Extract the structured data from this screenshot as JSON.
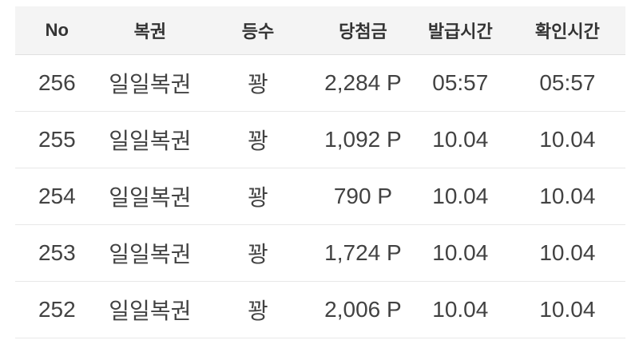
{
  "table": {
    "name": "lottery-history",
    "columns": [
      {
        "key": "no",
        "label": "No"
      },
      {
        "key": "lottery",
        "label": "복권"
      },
      {
        "key": "rank",
        "label": "등수"
      },
      {
        "key": "prize",
        "label": "당첨금"
      },
      {
        "key": "issued-time",
        "label": "발급시간"
      },
      {
        "key": "checked-time",
        "label": "확인시간"
      }
    ],
    "rows": [
      [
        "256",
        "일일복권",
        "꽝",
        "2,284 P",
        "05:57",
        "05:57"
      ],
      [
        "255",
        "일일복권",
        "꽝",
        "1,092 P",
        "10.04",
        "10.04"
      ],
      [
        "254",
        "일일복권",
        "꽝",
        "790 P",
        "10.04",
        "10.04"
      ],
      [
        "253",
        "일일복권",
        "꽝",
        "1,724 P",
        "10.04",
        "10.04"
      ],
      [
        "252",
        "일일복권",
        "꽝",
        "2,006 P",
        "10.04",
        "10.04"
      ]
    ]
  },
  "colors": {
    "header_bg": "#f4f4f4",
    "header_text": "#333333",
    "body_text": "#424242",
    "divider": "#e8e8e8",
    "header_divider": "#e0e0e0"
  }
}
